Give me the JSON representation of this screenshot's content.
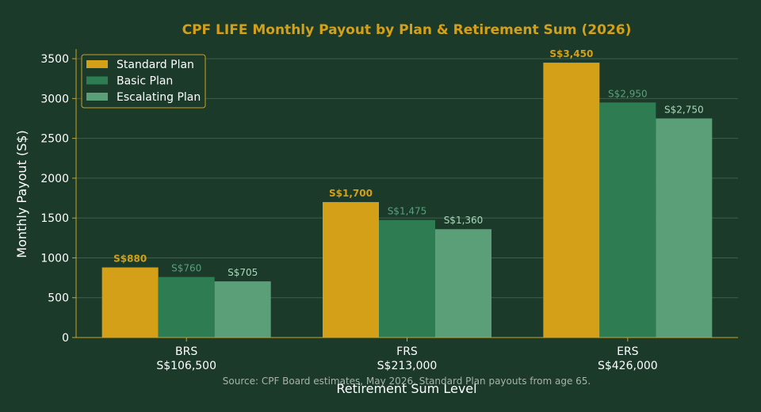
{
  "chart_data": {
    "type": "bar",
    "title": "CPF LIFE Monthly Payout by Plan & Retirement Sum (2026)",
    "xlabel": "Retirement Sum Level",
    "ylabel": "Monthly Payout (S$)",
    "categories": [
      "BRS",
      "FRS",
      "ERS"
    ],
    "category_sublabels": [
      "S$106,500",
      "S$213,000",
      "S$426,000"
    ],
    "ylim": [
      0,
      3620
    ],
    "yticks": [
      0,
      500,
      1000,
      1500,
      2000,
      2500,
      3000,
      3500
    ],
    "grid": true,
    "legend_position": "top-left",
    "series": [
      {
        "name": "Standard Plan",
        "values": [
          880,
          1700,
          3450
        ],
        "labels": [
          "S$880",
          "S$1,700",
          "S$3,450"
        ],
        "color": "#d4a017",
        "label_color": "#d4a017",
        "label_bold": true
      },
      {
        "name": "Basic Plan",
        "values": [
          760,
          1475,
          2950
        ],
        "labels": [
          "S$760",
          "S$1,475",
          "S$2,950"
        ],
        "color": "#2e7d52",
        "label_color": "#5aa07c",
        "label_bold": false
      },
      {
        "name": "Escalating Plan",
        "values": [
          705,
          1360,
          2750
        ],
        "labels": [
          "S$705",
          "S$1,360",
          "S$2,750"
        ],
        "color": "#5a9f78",
        "label_color": "#a8d8b9",
        "label_bold": false
      }
    ],
    "source": "Source: CPF Board estimates, May 2026. Standard Plan payouts from age 65."
  },
  "colors": {
    "background": "#1b3a2a",
    "axis": "#c9a227",
    "grid": "#3f5e4d",
    "title": "#d4a017"
  }
}
